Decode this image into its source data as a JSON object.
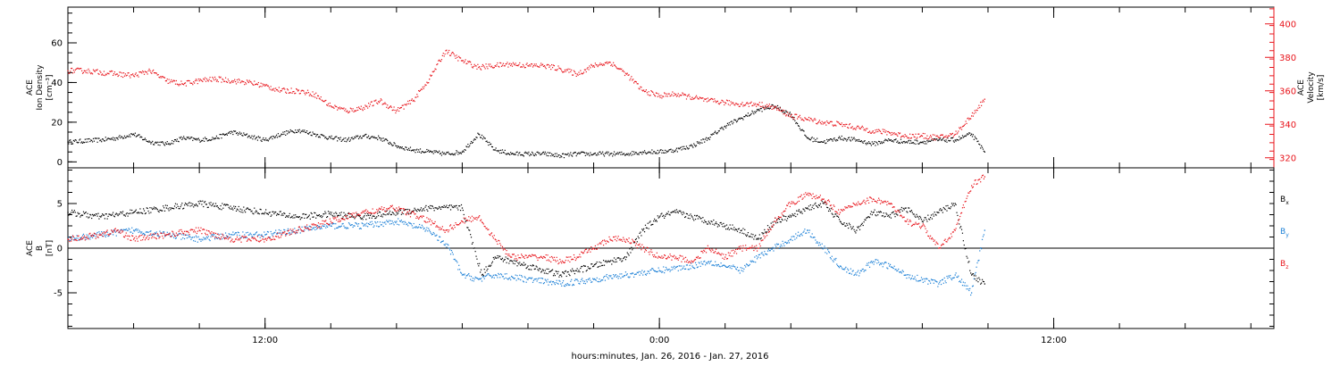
{
  "x_caption": "hours:minutes, Jan. 26, 2016 - Jan. 27, 2016",
  "colors": {
    "black": "#000000",
    "red": "#e8141b",
    "blue": "#1a7fd6"
  },
  "chart_data": [
    {
      "type": "scatter",
      "panel": "top",
      "ylabel_lines": [
        "ACE",
        "Ion Density",
        "[cm⁻³]"
      ],
      "ylim": [
        -3,
        78
      ],
      "yticks": [
        0,
        20,
        40,
        60
      ],
      "ylabel_right_lines": [
        "ACE",
        "Velocity",
        "[km/s]"
      ],
      "y2lim": [
        314,
        410
      ],
      "y2ticks": [
        320,
        340,
        360,
        380,
        400
      ],
      "xlim": [
        6.0,
        42.7
      ],
      "xticks": [
        12,
        24,
        36
      ],
      "xtick_labels": [
        "12:00",
        "0:00",
        "12:00"
      ],
      "series": [
        {
          "color": "black",
          "axis": "left",
          "x": [
            6.0,
            7.0,
            7.5,
            8.0,
            8.5,
            9.0,
            9.5,
            10.0,
            10.5,
            11.0,
            11.5,
            12.0,
            12.5,
            13.0,
            13.5,
            14.0,
            14.5,
            15.0,
            15.5,
            16.0,
            16.5,
            17.0,
            17.5,
            18.0,
            18.5,
            19.0,
            19.5,
            20.0,
            20.5,
            21.0,
            21.5,
            22.0,
            22.5,
            23.0,
            23.5,
            24.0,
            24.5,
            25.0,
            25.5,
            26.0,
            26.5,
            27.0,
            27.5,
            28.0,
            28.5,
            29.0,
            29.5,
            30.0,
            30.5,
            31.0,
            31.5,
            32.0,
            32.5,
            33.0,
            33.5,
            33.9
          ],
          "y": [
            10,
            11,
            12,
            14,
            10,
            9,
            12,
            11,
            12,
            15,
            13,
            11,
            14,
            16,
            14,
            12,
            11,
            13,
            12,
            8,
            6,
            5,
            4,
            5,
            14,
            6,
            4,
            4,
            4,
            3,
            4,
            4,
            4,
            4,
            5,
            5,
            6,
            8,
            12,
            18,
            22,
            26,
            28,
            24,
            12,
            10,
            12,
            11,
            9,
            11,
            10,
            10,
            11,
            11,
            14,
            5
          ]
        },
        {
          "color": "red",
          "axis": "right",
          "x": [
            6.0,
            6.5,
            7.0,
            7.5,
            8.0,
            8.5,
            9.0,
            9.5,
            10.0,
            10.5,
            11.0,
            11.5,
            12.0,
            12.5,
            13.0,
            13.5,
            14.0,
            14.5,
            15.0,
            15.5,
            16.0,
            16.5,
            17.0,
            17.5,
            18.0,
            18.5,
            19.0,
            19.5,
            20.0,
            20.5,
            21.0,
            21.5,
            22.0,
            22.5,
            23.0,
            23.5,
            24.0,
            24.5,
            25.0,
            25.5,
            26.0,
            26.5,
            27.0,
            27.5,
            28.0,
            28.5,
            29.0,
            29.5,
            30.0,
            30.5,
            31.0,
            31.5,
            32.0,
            32.5,
            33.0,
            33.5,
            33.9
          ],
          "y": [
            372,
            372,
            371,
            370,
            369,
            372,
            366,
            364,
            366,
            367,
            366,
            365,
            363,
            360,
            360,
            358,
            351,
            348,
            350,
            354,
            348,
            354,
            367,
            384,
            378,
            374,
            375,
            376,
            375,
            375,
            373,
            370,
            375,
            377,
            370,
            360,
            357,
            358,
            356,
            354,
            353,
            352,
            352,
            350,
            345,
            343,
            341,
            340,
            338,
            336,
            335,
            333,
            333,
            332,
            334,
            345,
            355
          ]
        }
      ]
    },
    {
      "type": "scatter",
      "panel": "bottom",
      "ylabel_lines": [
        "ACE",
        "B",
        "[nT]"
      ],
      "ylim": [
        -9,
        9
      ],
      "yticks": [
        -5,
        0,
        5
      ],
      "zero_line": true,
      "xlim": [
        6.0,
        42.7
      ],
      "xticks": [
        12,
        24,
        36
      ],
      "xtick_labels": [
        "12:00",
        "0:00",
        "12:00"
      ],
      "legend": {
        "position": "right",
        "labels": [
          "Bx",
          "By",
          "Bz"
        ]
      },
      "series": [
        {
          "name": "Bx",
          "color": "black",
          "x": [
            6.0,
            7.0,
            8.0,
            9.0,
            10.0,
            11.0,
            12.0,
            13.0,
            14.0,
            15.0,
            16.0,
            17.0,
            18.0,
            18.6,
            19.0,
            20.0,
            21.0,
            22.0,
            23.0,
            23.5,
            24.0,
            24.5,
            25.0,
            25.5,
            26.0,
            26.5,
            27.0,
            27.5,
            28.0,
            28.5,
            29.0,
            29.5,
            30.0,
            30.5,
            31.0,
            31.5,
            32.0,
            32.5,
            33.0,
            33.5,
            33.9
          ],
          "y": [
            4,
            3.5,
            4,
            4.5,
            5,
            4.5,
            4,
            3.5,
            3.8,
            3.5,
            4,
            4.5,
            4.5,
            -3,
            -1,
            -2,
            -3,
            -2,
            -1,
            2,
            3.5,
            4,
            3.5,
            3,
            2.5,
            2,
            1,
            3,
            3.5,
            4.5,
            5,
            3,
            2,
            4,
            3.5,
            4.5,
            3,
            4,
            5,
            -3,
            -4
          ]
        },
        {
          "name": "By",
          "color": "blue",
          "x": [
            6.0,
            7.0,
            8.0,
            9.0,
            10.0,
            11.0,
            12.0,
            13.0,
            14.0,
            15.0,
            16.0,
            17.0,
            17.6,
            18.0,
            18.5,
            19.0,
            20.0,
            21.0,
            22.0,
            23.0,
            24.0,
            25.0,
            25.5,
            26.0,
            26.5,
            27.0,
            27.5,
            28.0,
            28.5,
            29.0,
            29.5,
            30.0,
            30.5,
            31.0,
            31.5,
            32.0,
            32.5,
            33.0,
            33.5,
            33.9
          ],
          "y": [
            1,
            1.5,
            2,
            1.5,
            1,
            1.5,
            1.5,
            2,
            2.5,
            2.5,
            3,
            2,
            0,
            -3,
            -3.5,
            -3,
            -3.5,
            -4,
            -3.5,
            -3,
            -2.5,
            -2,
            -1.5,
            -2,
            -2.5,
            -1,
            0,
            1,
            2,
            0,
            -2,
            -3,
            -1.5,
            -2,
            -3,
            -3.5,
            -4,
            -3,
            -5,
            2
          ]
        },
        {
          "name": "Bz",
          "color": "red",
          "x": [
            6.0,
            7.0,
            7.5,
            8.0,
            9.0,
            10.0,
            11.0,
            12.0,
            13.0,
            14.0,
            15.0,
            16.0,
            17.0,
            17.5,
            18.0,
            18.5,
            19.0,
            19.5,
            20.0,
            20.5,
            21.0,
            21.5,
            22.0,
            22.5,
            23.0,
            23.5,
            24.0,
            24.5,
            25.0,
            25.5,
            26.0,
            26.5,
            27.0,
            27.5,
            28.0,
            28.5,
            29.0,
            29.5,
            30.0,
            30.5,
            31.0,
            31.5,
            32.0,
            32.5,
            33.0,
            33.5,
            33.9
          ],
          "y": [
            1,
            1.5,
            2,
            1,
            1.5,
            2,
            1,
            1,
            2,
            3,
            4,
            4.5,
            3,
            2,
            3,
            3.5,
            1,
            -1,
            -1,
            -1,
            -1.5,
            -1,
            0,
            1,
            1,
            0,
            -1,
            -1,
            -1.5,
            0,
            -1,
            0,
            0,
            3,
            5,
            6,
            5.5,
            4,
            5,
            5.5,
            5,
            3,
            2.5,
            0,
            2,
            7,
            8
          ]
        }
      ]
    }
  ]
}
